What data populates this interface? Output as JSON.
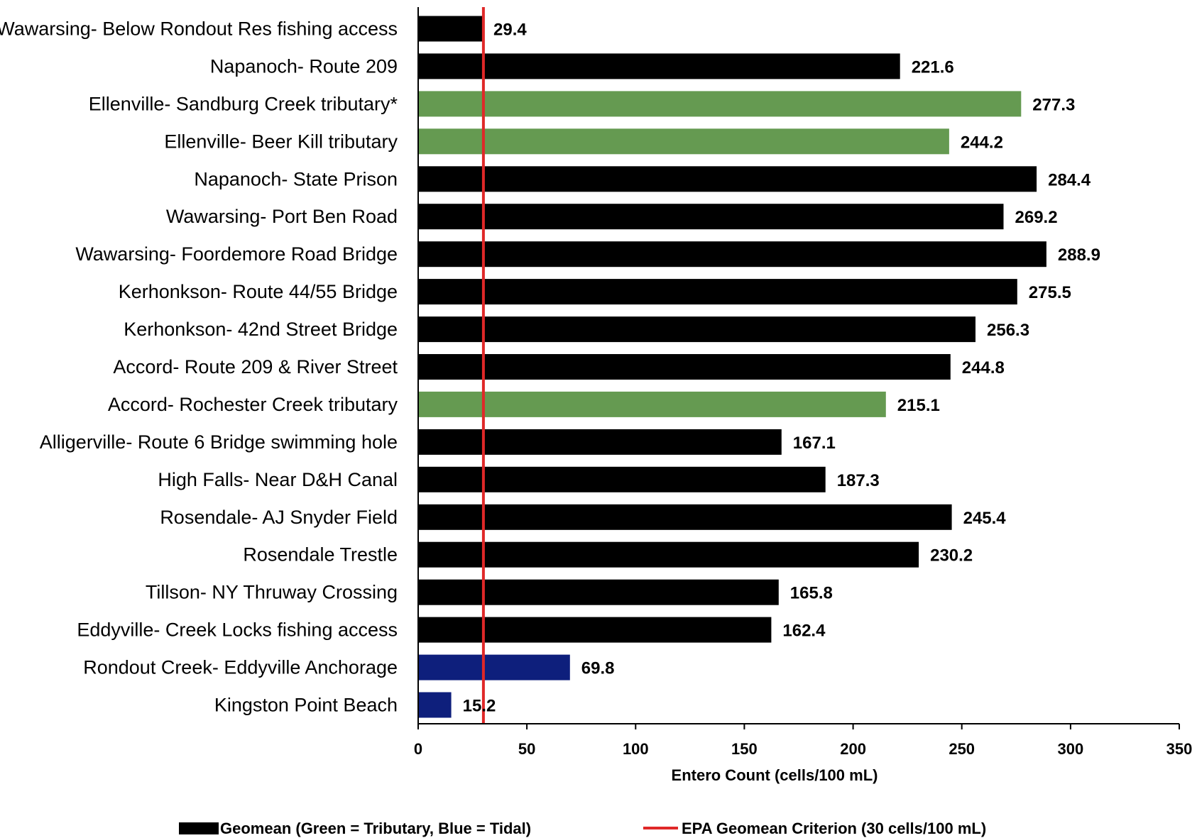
{
  "chart_data": {
    "type": "bar",
    "orientation": "horizontal",
    "categories": [
      "Wawarsing- Below Rondout Res fishing access",
      "Napanoch- Route 209",
      "Ellenville- Sandburg Creek tributary*",
      "Ellenville- Beer Kill tributary",
      "Napanoch- State Prison",
      "Wawarsing- Port Ben Road",
      "Wawarsing- Foordemore Road Bridge",
      "Kerhonkson- Route 44/55 Bridge",
      "Kerhonkson- 42nd Street Bridge",
      "Accord- Route 209 & River Street",
      "Accord- Rochester Creek tributary",
      "Alligerville- Route 6 Bridge swimming hole",
      "High Falls- Near D&H Canal",
      "Rosendale- AJ Snyder Field",
      "Rosendale Trestle",
      "Tillson- NY Thruway Crossing",
      "Eddyville- Creek Locks fishing access",
      "Rondout Creek- Eddyville Anchorage",
      "Kingston Point Beach"
    ],
    "values": [
      29.4,
      221.6,
      277.3,
      244.2,
      284.4,
      269.2,
      288.9,
      275.5,
      256.3,
      244.8,
      215.1,
      167.1,
      187.3,
      245.4,
      230.2,
      165.8,
      162.4,
      69.8,
      15.2
    ],
    "value_labels": [
      "29.4",
      "221.6",
      "277.3",
      "244.2",
      "284.4",
      "269.2",
      "288.9",
      "275.5",
      "256.3",
      "244.8",
      "215.1",
      "167.1",
      "187.3",
      "245.4",
      "230.2",
      "165.8",
      "162.4",
      "69.8",
      "15.2"
    ],
    "bar_types": [
      "main",
      "main",
      "tributary",
      "tributary",
      "main",
      "main",
      "main",
      "main",
      "main",
      "main",
      "tributary",
      "main",
      "main",
      "main",
      "main",
      "main",
      "main",
      "tidal",
      "tidal"
    ],
    "colors": {
      "main": "#000000",
      "tributary": "#659a51",
      "tidal": "#0e1f7c",
      "criterion": "#e02828"
    },
    "xlabel": "Entero Count (cells/100 mL)",
    "xlim": [
      0,
      350
    ],
    "xticks": [
      "0",
      "50",
      "100",
      "150",
      "200",
      "250",
      "300",
      "350"
    ],
    "reference_line": {
      "value": 30
    },
    "grid": false,
    "legend": {
      "position": "bottom",
      "items": [
        {
          "label": "Geomean (Green = Tributary, Blue = Tidal)",
          "kind": "bar"
        },
        {
          "label": "EPA Geomean Criterion (30 cells/100 mL)",
          "kind": "line"
        }
      ]
    }
  }
}
